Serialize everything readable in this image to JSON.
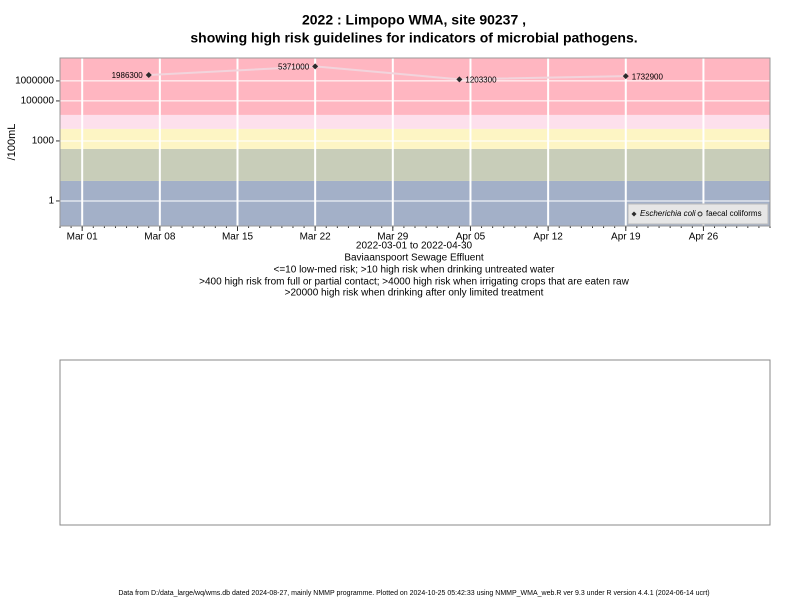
{
  "chart_data": {
    "type": "line",
    "title": "2022 : Limpopo WMA, site 90237 ,",
    "subtitle": "showing high risk guidelines for indicators of microbial pathogens.",
    "y_label": "/100mL",
    "x_label": "2022-03-01 to 2022-04-30",
    "site_name": "Baviaanspoort Sewage Effluent",
    "notes": [
      "<=10 low-med risk; >10 high risk when drinking untreated water",
      ">400 high risk from full or partial contact; >4000 high risk when irrigating crops that are eaten raw",
      ">20000 high risk when drinking after only limited treatment"
    ],
    "footer": "Data from D:/data_large/wq/wms.db dated 2024-08-27, mainly NMMP programme. Plotted on 2024-10-25 05:42:33 using NMMP_WMA_web.R ver 9.3 under R version 4.4.1 (2024-06-14 ucrt)",
    "log_scale": true,
    "grid": true,
    "legend_position": "bottom-right",
    "risk_thresholds": [
      10,
      400,
      4000,
      20000
    ],
    "risk_colors": [
      "#a3b0c8",
      "#c8cdb9",
      "#fdf5c4",
      "#fde0ec",
      "#ffb6c1"
    ],
    "x": [
      "2022-03-07",
      "2022-03-22",
      "2022-04-04",
      "2022-04-19"
    ],
    "series": [
      {
        "name": "Escherichia coli",
        "color": "#2b2b2b",
        "line_color": "#f2d4dc",
        "values": [
          1986300,
          5371000,
          1203300,
          1732900
        ]
      },
      {
        "name": "faecal coliforms",
        "color": "#2b2b2b",
        "values": [
          null,
          null,
          null,
          null
        ]
      }
    ],
    "xlim": [
      "2022-02-27",
      "2022-05-02"
    ],
    "xticks": [
      {
        "value": "2022-03-01",
        "label": "Mar 01"
      },
      {
        "value": "2022-03-08",
        "label": "Mar 08"
      },
      {
        "value": "2022-03-15",
        "label": "Mar 15"
      },
      {
        "value": "2022-03-22",
        "label": "Mar 22"
      },
      {
        "value": "2022-03-29",
        "label": "Mar 29"
      },
      {
        "value": "2022-04-05",
        "label": "Apr 05"
      },
      {
        "value": "2022-04-12",
        "label": "Apr 12"
      },
      {
        "value": "2022-04-19",
        "label": "Apr 19"
      },
      {
        "value": "2022-04-26",
        "label": "Apr 26"
      }
    ],
    "ylim": [
      0.056,
      14000000
    ],
    "yticks": [
      1,
      1000,
      100000,
      1000000
    ]
  }
}
